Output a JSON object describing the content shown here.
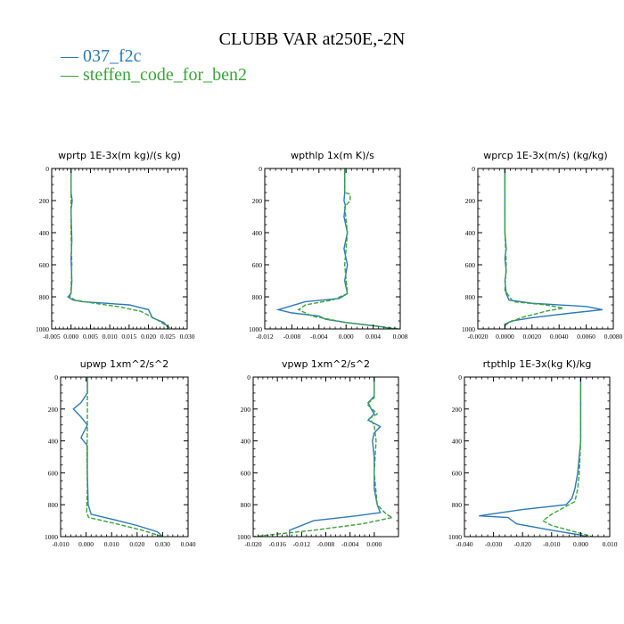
{
  "figure": {
    "title": "CLUBB VAR at250E,-2N",
    "legend": [
      {
        "label": "— 037_f2c",
        "color": "#2c79b5"
      },
      {
        "label": "— steffen_code_for_ben2",
        "color": "#3ba33b"
      }
    ]
  },
  "colors": {
    "series1": "#2c79b5",
    "series2": "#3ba33b"
  },
  "chart_data": [
    {
      "type": "line",
      "title": "wprtp  1E-3x(m kg)/(s kg)",
      "xlim": [
        -0.005,
        0.03
      ],
      "ylim": [
        1000,
        0
      ],
      "xticks": [
        -0.005,
        0.0,
        0.005,
        0.01,
        0.015,
        0.02,
        0.025,
        0.03
      ],
      "xtick_labels": [
        "-0.005",
        "0.000",
        "0.005",
        "0.010",
        "0.015",
        "0.020",
        "0.025",
        "0.030"
      ],
      "yticks": [
        0,
        200,
        400,
        600,
        800,
        1000
      ],
      "ytick_labels": [
        "0",
        "200",
        "400",
        "600",
        "800",
        "1000"
      ],
      "series": [
        {
          "name": "037_f2c",
          "points": [
            [
              0,
              0
            ],
            [
              0,
              150
            ],
            [
              0.0003,
              200
            ],
            [
              0,
              260
            ],
            [
              0.0002,
              450
            ],
            [
              0,
              560
            ],
            [
              0.0002,
              700
            ],
            [
              0,
              780
            ],
            [
              -0.0008,
              800
            ],
            [
              0.0005,
              820
            ],
            [
              0.003,
              830
            ],
            [
              0.015,
              850
            ],
            [
              0.02,
              880
            ],
            [
              0.021,
              930
            ],
            [
              0.024,
              960
            ],
            [
              0.025,
              990
            ],
            [
              0.025,
              1000
            ]
          ]
        },
        {
          "name": "steffen_code_for_ben2",
          "points": [
            [
              0,
              0
            ],
            [
              0,
              200
            ],
            [
              0,
              400
            ],
            [
              0.0002,
              600
            ],
            [
              0,
              760
            ],
            [
              -0.0003,
              800
            ],
            [
              0.001,
              820
            ],
            [
              0.006,
              840
            ],
            [
              0.012,
              860
            ],
            [
              0.018,
              890
            ],
            [
              0.022,
              940
            ],
            [
              0.024,
              970
            ],
            [
              0.026,
              1000
            ]
          ]
        }
      ]
    },
    {
      "type": "line",
      "title": "wpthlp  1x(m K)/s",
      "xlim": [
        -0.012,
        0.008
      ],
      "ylim": [
        1000,
        0
      ],
      "xticks": [
        -0.012,
        -0.008,
        -0.004,
        0.0,
        0.004,
        0.008
      ],
      "xtick_labels": [
        "-0.012",
        "-0.008",
        "-0.004",
        "0.000",
        "0.004",
        "0.008"
      ],
      "yticks": [
        0,
        200,
        400,
        600,
        800,
        1000
      ],
      "ytick_labels": [
        "0",
        "200",
        "400",
        "600",
        "800",
        "1000"
      ],
      "series": [
        {
          "name": "037_f2c",
          "points": [
            [
              -0.0002,
              0
            ],
            [
              -0.0002,
              150
            ],
            [
              -0.0003,
              200
            ],
            [
              -0.0001,
              230
            ],
            [
              -0.0003,
              300
            ],
            [
              0.0002,
              400
            ],
            [
              -0.0003,
              500
            ],
            [
              0.0002,
              600
            ],
            [
              -0.0002,
              700
            ],
            [
              0.0002,
              780
            ],
            [
              -0.001,
              810
            ],
            [
              -0.006,
              830
            ],
            [
              -0.01,
              880
            ],
            [
              -0.008,
              900
            ],
            [
              -0.004,
              920
            ],
            [
              -0.003,
              940
            ],
            [
              0.0,
              960
            ],
            [
              0.003,
              975
            ],
            [
              0.005,
              985
            ],
            [
              0.007,
              1000
            ]
          ]
        },
        {
          "name": "steffen_code_for_ben2",
          "points": [
            [
              -0.0002,
              0
            ],
            [
              -0.0002,
              150
            ],
            [
              0.0006,
              160
            ],
            [
              0.0006,
              200
            ],
            [
              -0.0002,
              240
            ],
            [
              0.0002,
              400
            ],
            [
              -0.0002,
              600
            ],
            [
              0.0002,
              780
            ],
            [
              -0.002,
              820
            ],
            [
              -0.006,
              850
            ],
            [
              -0.007,
              880
            ],
            [
              -0.005,
              920
            ],
            [
              0.0,
              960
            ],
            [
              0.005,
              985
            ],
            [
              0.008,
              1000
            ]
          ]
        }
      ]
    },
    {
      "type": "line",
      "title": "wprcp  1E-3x(m/s) (kg/kg)",
      "xlim": [
        -0.002,
        0.008
      ],
      "ylim": [
        1000,
        0
      ],
      "xticks": [
        -0.002,
        0.0,
        0.002,
        0.004,
        0.006,
        0.008
      ],
      "xtick_labels": [
        "-0.0020",
        "0.0000",
        "0.0020",
        "0.0040",
        "0.0060",
        "0.0080"
      ],
      "yticks": [
        0,
        200,
        400,
        600,
        800,
        1000
      ],
      "ytick_labels": [
        "0",
        "200",
        "400",
        "600",
        "800",
        "1000"
      ],
      "series": [
        {
          "name": "037_f2c",
          "points": [
            [
              0,
              0
            ],
            [
              0,
              400
            ],
            [
              0.0001,
              500
            ],
            [
              0,
              560
            ],
            [
              0.0001,
              640
            ],
            [
              0,
              700
            ],
            [
              0.0001,
              780
            ],
            [
              0.0003,
              820
            ],
            [
              0.002,
              840
            ],
            [
              0.006,
              860
            ],
            [
              0.0072,
              880
            ],
            [
              0.005,
              900
            ],
            [
              0.002,
              930
            ],
            [
              0.0005,
              950
            ],
            [
              0,
              970
            ],
            [
              0,
              1000
            ]
          ]
        },
        {
          "name": "steffen_code_for_ben2",
          "points": [
            [
              0,
              0
            ],
            [
              0,
              400
            ],
            [
              0.0001,
              600
            ],
            [
              0,
              760
            ],
            [
              0.0006,
              830
            ],
            [
              0.003,
              850
            ],
            [
              0.0043,
              870
            ],
            [
              0.003,
              890
            ],
            [
              0.0012,
              930
            ],
            [
              0.0003,
              960
            ],
            [
              0,
              980
            ],
            [
              0,
              1000
            ]
          ]
        }
      ]
    },
    {
      "type": "line",
      "title": "upwp  1xm^2/s^2",
      "xlim": [
        -0.01,
        0.04
      ],
      "ylim": [
        1000,
        0
      ],
      "xticks": [
        -0.01,
        0.0,
        0.01,
        0.02,
        0.03,
        0.04
      ],
      "xtick_labels": [
        "-0.010",
        "0.000",
        "0.010",
        "0.020",
        "0.030",
        "0.040"
      ],
      "yticks": [
        0,
        200,
        400,
        600,
        800,
        1000
      ],
      "ytick_labels": [
        "0",
        "200",
        "400",
        "600",
        "800",
        "1000"
      ],
      "series": [
        {
          "name": "037_f2c",
          "points": [
            [
              0.0005,
              0
            ],
            [
              0.0005,
              100
            ],
            [
              -0.002,
              160
            ],
            [
              -0.005,
              200
            ],
            [
              -0.002,
              250
            ],
            [
              0.0005,
              300
            ],
            [
              -0.002,
              380
            ],
            [
              0.0005,
              430
            ],
            [
              0.0005,
              600
            ],
            [
              0.0008,
              800
            ],
            [
              0.002,
              860
            ],
            [
              0.01,
              890
            ],
            [
              0.02,
              930
            ],
            [
              0.028,
              970
            ],
            [
              0.03,
              1000
            ]
          ]
        },
        {
          "name": "steffen_code_for_ben2",
          "points": [
            [
              0.0005,
              0
            ],
            [
              0.0005,
              300
            ],
            [
              0.0003,
              500
            ],
            [
              0.0005,
              700
            ],
            [
              0.0002,
              850
            ],
            [
              0.001,
              880
            ],
            [
              0.012,
              920
            ],
            [
              0.022,
              960
            ],
            [
              0.03,
              1000
            ]
          ]
        }
      ]
    },
    {
      "type": "line",
      "title": "vpwp  1xm^2/s^2",
      "xlim": [
        -0.02,
        0.004
      ],
      "ylim": [
        1000,
        0
      ],
      "xticks": [
        -0.02,
        -0.016,
        -0.012,
        -0.008,
        -0.004,
        0.0
      ],
      "xtick_labels": [
        "-0.020",
        "-0.016",
        "-0.012",
        "-0.008",
        "-0.004",
        "0.000"
      ],
      "yticks": [
        0,
        200,
        400,
        600,
        800,
        1000
      ],
      "ytick_labels": [
        "0",
        "200",
        "400",
        "600",
        "800",
        "1000"
      ],
      "series": [
        {
          "name": "037_f2c",
          "points": [
            [
              0,
              0
            ],
            [
              0,
              120
            ],
            [
              -0.001,
              160
            ],
            [
              -0.0005,
              200
            ],
            [
              0,
              230
            ],
            [
              -0.001,
              270
            ],
            [
              0.001,
              310
            ],
            [
              0,
              350
            ],
            [
              -0.0003,
              400
            ],
            [
              0,
              500
            ],
            [
              0,
              700
            ],
            [
              0.0005,
              800
            ],
            [
              0.001,
              850
            ],
            [
              -0.003,
              870
            ],
            [
              -0.01,
              900
            ],
            [
              -0.014,
              960
            ],
            [
              -0.014,
              1000
            ]
          ]
        },
        {
          "name": "steffen_code_for_ben2",
          "points": [
            [
              0,
              0
            ],
            [
              0,
              130
            ],
            [
              -0.0012,
              170
            ],
            [
              0.0005,
              230
            ],
            [
              -0.0008,
              260
            ],
            [
              0,
              300
            ],
            [
              0.0003,
              400
            ],
            [
              0,
              600
            ],
            [
              0.0005,
              800
            ],
            [
              0.002,
              860
            ],
            [
              0.003,
              880
            ],
            [
              -0.002,
              920
            ],
            [
              -0.01,
              960
            ],
            [
              -0.02,
              1000
            ]
          ]
        }
      ]
    },
    {
      "type": "line",
      "title": "rtpthlp  1E-3x(kg K)/kg",
      "xlim": [
        -0.04,
        0.01
      ],
      "ylim": [
        1000,
        0
      ],
      "xticks": [
        -0.04,
        -0.03,
        -0.02,
        -0.01,
        0.0,
        0.01
      ],
      "xtick_labels": [
        "-0.040",
        "-0.030",
        "-0.020",
        "-0.010",
        "0.000",
        "0.010"
      ],
      "yticks": [
        0,
        200,
        400,
        600,
        800,
        1000
      ],
      "ytick_labels": [
        "0",
        "200",
        "400",
        "600",
        "800",
        "1000"
      ],
      "series": [
        {
          "name": "037_f2c",
          "points": [
            [
              0,
              0
            ],
            [
              0,
              400
            ],
            [
              -0.001,
              600
            ],
            [
              -0.002,
              700
            ],
            [
              -0.003,
              760
            ],
            [
              -0.005,
              800
            ],
            [
              -0.02,
              830
            ],
            [
              -0.035,
              870
            ],
            [
              -0.025,
              880
            ],
            [
              -0.022,
              920
            ],
            [
              -0.01,
              960
            ],
            [
              0,
              990
            ],
            [
              0.002,
              1000
            ]
          ]
        },
        {
          "name": "steffen_code_for_ben2",
          "points": [
            [
              0,
              0
            ],
            [
              0,
              400
            ],
            [
              -0.0005,
              600
            ],
            [
              -0.001,
              700
            ],
            [
              -0.002,
              780
            ],
            [
              -0.006,
              820
            ],
            [
              -0.01,
              860
            ],
            [
              -0.013,
              900
            ],
            [
              -0.01,
              930
            ],
            [
              -0.004,
              960
            ],
            [
              0,
              980
            ],
            [
              0.004,
              1000
            ]
          ]
        }
      ]
    }
  ]
}
